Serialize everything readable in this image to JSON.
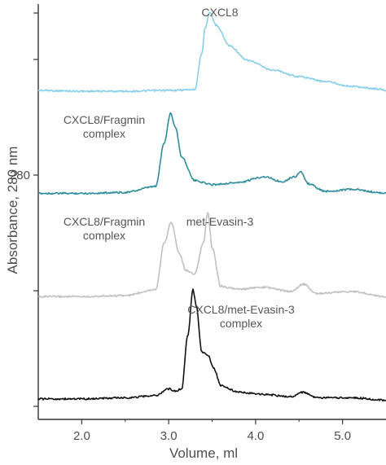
{
  "chart_data": {
    "type": "line",
    "xlabel": "Volume, ml",
    "ylabel": "Absorbance, 280 nm",
    "xlim": [
      1.5,
      5.5
    ],
    "xticks": [
      "2.0",
      "3.0",
      "4.0",
      "5.0"
    ],
    "yticks": [
      "280"
    ],
    "grid": false,
    "series": [
      {
        "name": "CXCL8",
        "color": "#87ceeb",
        "peaks": [
          {
            "label": "CXCL8",
            "label_lines": [
              "CXCL8"
            ]
          }
        ],
        "x": [
          1.5,
          2.0,
          2.5,
          3.0,
          3.3,
          3.38,
          3.42,
          3.47,
          3.55,
          3.7,
          3.9,
          4.2,
          4.5,
          4.8,
          5.1,
          5.4,
          5.5
        ],
        "y": [
          0.05,
          0.04,
          0.04,
          0.05,
          0.06,
          0.5,
          0.82,
          1.0,
          0.85,
          0.6,
          0.42,
          0.3,
          0.22,
          0.16,
          0.1,
          0.07,
          0.05
        ]
      },
      {
        "name": "CXCL8/Fragmin complex",
        "color": "#2f8c9e",
        "peaks": [
          {
            "label": "CXCL8/Fragmin complex",
            "label_lines": [
              "CXCL8/Fragmin",
              "complex"
            ]
          }
        ],
        "x": [
          1.5,
          2.0,
          2.5,
          2.85,
          2.95,
          3.02,
          3.08,
          3.15,
          3.3,
          3.5,
          3.8,
          4.1,
          4.3,
          4.45,
          4.52,
          4.6,
          4.8,
          5.1,
          5.5
        ],
        "y": [
          0.03,
          0.03,
          0.04,
          0.1,
          0.55,
          0.85,
          0.7,
          0.4,
          0.16,
          0.12,
          0.14,
          0.2,
          0.15,
          0.2,
          0.25,
          0.13,
          0.05,
          0.07,
          0.03
        ]
      },
      {
        "name": "CXCL8/Fragmin complex + met-Evasin-3",
        "color": "#c0c0c0",
        "peaks": [
          {
            "label": "CXCL8/Fragmin complex",
            "label_lines": [
              "CXCL8/Fragmin",
              "complex"
            ]
          },
          {
            "label": "met-Evasin-3",
            "label_lines": [
              "met-Evasin-3"
            ]
          }
        ],
        "x": [
          1.5,
          2.0,
          2.5,
          2.85,
          2.95,
          3.03,
          3.12,
          3.2,
          3.3,
          3.4,
          3.45,
          3.5,
          3.6,
          3.8,
          4.1,
          4.4,
          4.55,
          4.7,
          5.1,
          5.5
        ],
        "y": [
          0.03,
          0.03,
          0.04,
          0.1,
          0.55,
          0.75,
          0.45,
          0.28,
          0.25,
          0.55,
          0.85,
          0.5,
          0.13,
          0.1,
          0.12,
          0.08,
          0.15,
          0.06,
          0.08,
          0.03
        ]
      },
      {
        "name": "CXCL8/met-Evasin-3 complex",
        "color": "#111111",
        "peaks": [
          {
            "label": "CXCL8/met-Evasin-3 complex",
            "label_lines": [
              "CXCL8/met-Evasin-3",
              "complex"
            ]
          }
        ],
        "x": [
          1.5,
          2.0,
          2.5,
          2.85,
          3.0,
          3.08,
          3.15,
          3.22,
          3.28,
          3.32,
          3.38,
          3.45,
          3.52,
          3.6,
          3.8,
          4.1,
          4.4,
          4.55,
          4.7,
          5.1,
          5.5
        ],
        "y": [
          0.03,
          0.03,
          0.04,
          0.06,
          0.12,
          0.1,
          0.12,
          0.6,
          1.0,
          0.85,
          0.45,
          0.42,
          0.3,
          0.15,
          0.09,
          0.07,
          0.05,
          0.09,
          0.04,
          0.04,
          0.02
        ]
      }
    ]
  }
}
